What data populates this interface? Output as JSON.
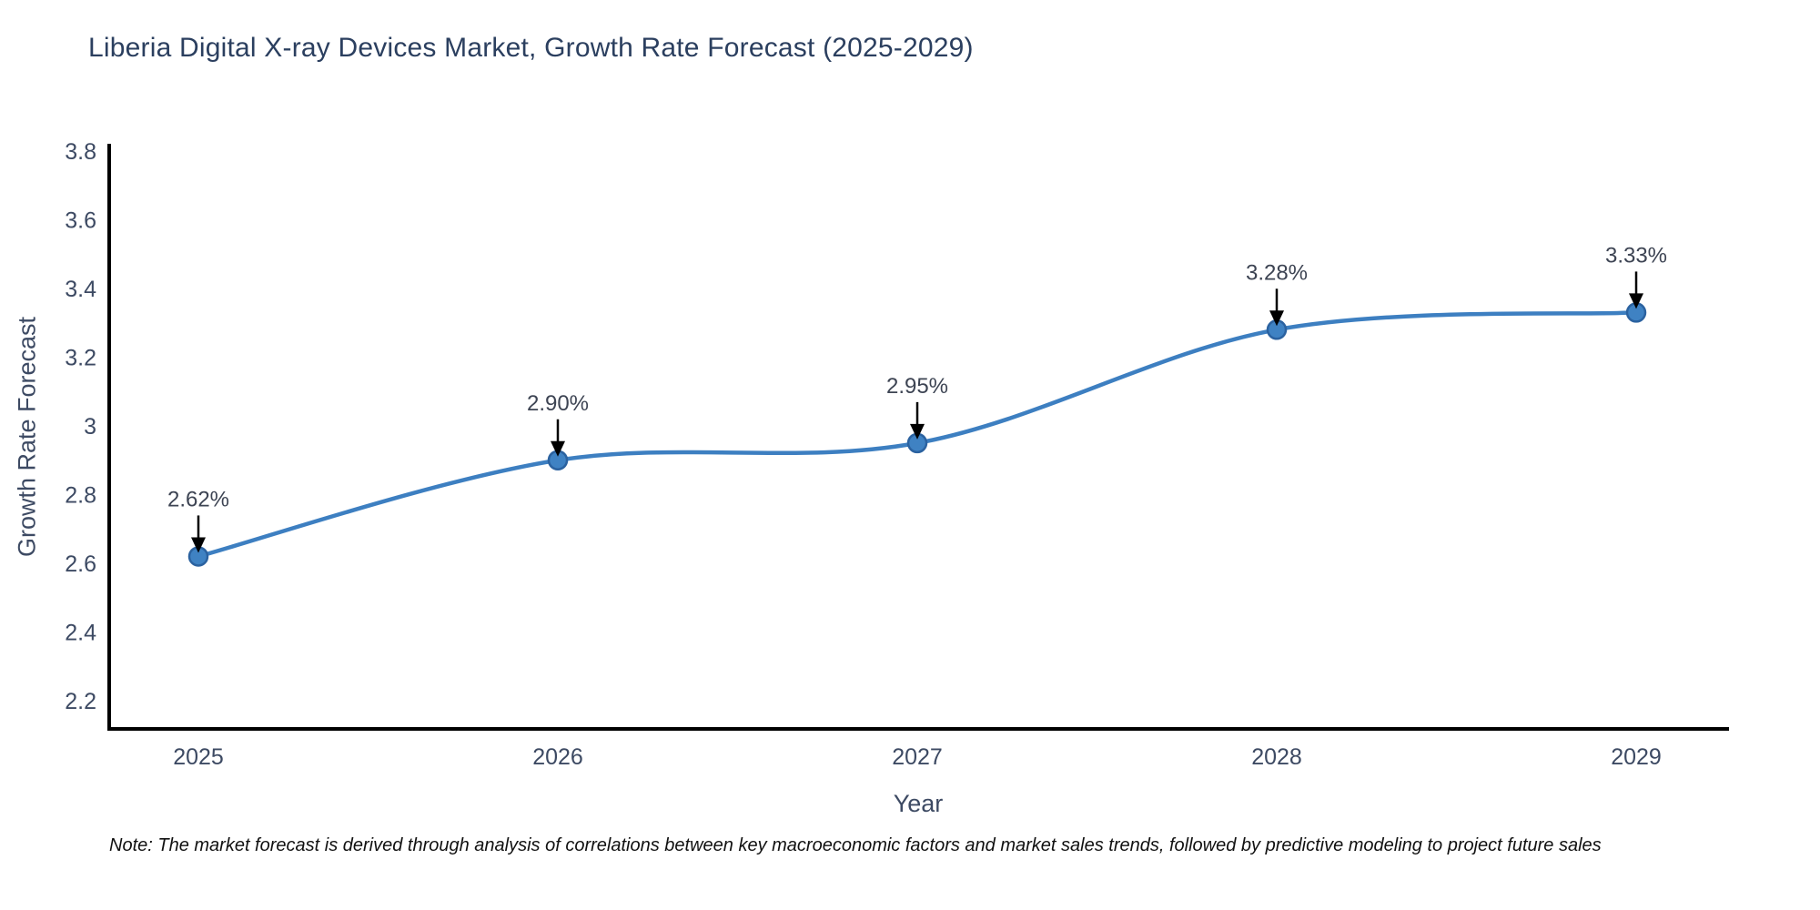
{
  "title": "Liberia Digital X-ray Devices Market, Growth Rate Forecast (2025-2029)",
  "note": "Note: The market forecast is derived through analysis of correlations between key macroeconomic factors and market sales trends, followed by predictive modeling to project future sales",
  "chart_data": {
    "type": "line",
    "title": "Liberia Digital X-ray Devices Market, Growth Rate Forecast (2025-2029)",
    "series": [
      {
        "name": "Growth Rate Forecast",
        "x": [
          2025,
          2026,
          2027,
          2028,
          2029
        ],
        "values": [
          2.62,
          2.9,
          2.95,
          3.28,
          3.33
        ],
        "point_labels": [
          "2.62%",
          "2.90%",
          "2.95%",
          "3.28%",
          "3.33%"
        ]
      }
    ],
    "xlabel": "Year",
    "ylabel": "Growth Rate Forecast",
    "xticks": [
      2025,
      2026,
      2027,
      2028,
      2029
    ],
    "yticks": [
      2.2,
      2.4,
      2.6,
      2.8,
      3,
      3.2,
      3.4,
      3.6,
      3.8
    ],
    "ylim": [
      2.1,
      3.82
    ],
    "xlim": [
      2024.75,
      2029.26
    ],
    "grid": false,
    "legend_position": "none",
    "line_shape": "spline",
    "annotations_have_arrows": true,
    "colors": {
      "line": "#3d7fc1",
      "marker_fill": "#3f82c3",
      "marker_edge": "#2b62a0",
      "axis": "#000000",
      "tick_text": "#3d4a63",
      "title_text": "#2b3f5f",
      "annotation_text": "#3d4453",
      "annotation_arrow": "#000000",
      "background": "#ffffff"
    }
  }
}
